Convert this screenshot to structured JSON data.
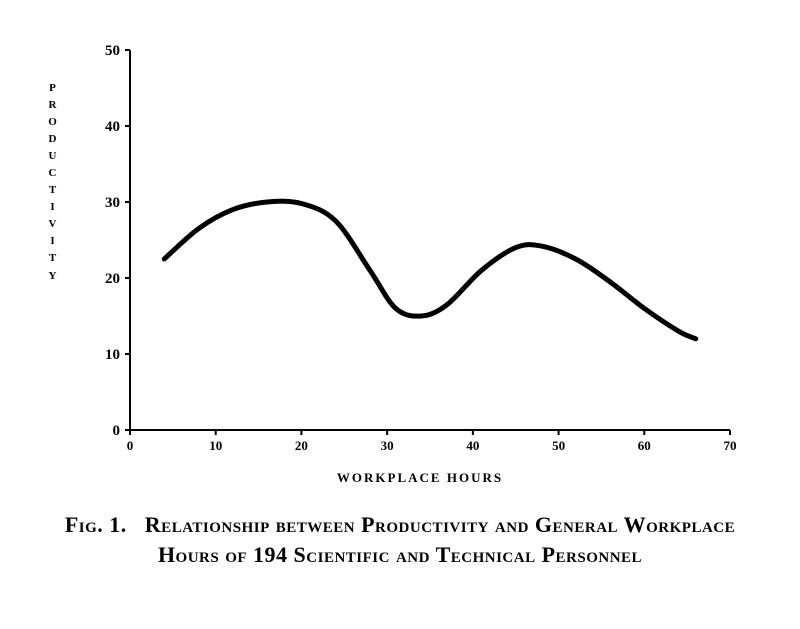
{
  "chart": {
    "type": "line",
    "background_color": "#ffffff",
    "plot_border_color": "#000000",
    "plot_border_width": 2,
    "curve_color": "#000000",
    "curve_width": 5,
    "x": {
      "label": "WORKPLACE  HOURS",
      "label_fontsize": 13,
      "min": 0,
      "max": 70,
      "tick_step": 10,
      "ticks": [
        0,
        10,
        20,
        30,
        40,
        50,
        60,
        70
      ],
      "tick_labels": [
        "0",
        "10",
        "20",
        "30",
        "40",
        "50",
        "60",
        "70"
      ],
      "tick_fontsize": 13
    },
    "y": {
      "label": "PRODUCTIVITY",
      "label_fontsize": 11,
      "min": 0,
      "max": 50,
      "tick_step": 10,
      "ticks": [
        0,
        10,
        20,
        30,
        40,
        50
      ],
      "tick_labels": [
        "0",
        "10",
        "20",
        "30",
        "40",
        "50"
      ],
      "tick_fontsize": 15
    },
    "series": [
      {
        "name": "productivity_vs_hours",
        "points": [
          [
            4,
            22.5
          ],
          [
            8,
            26.5
          ],
          [
            12,
            29.0
          ],
          [
            16,
            30.0
          ],
          [
            20,
            29.8
          ],
          [
            24,
            27.5
          ],
          [
            28,
            21.0
          ],
          [
            31,
            16.0
          ],
          [
            34,
            15.0
          ],
          [
            37,
            16.5
          ],
          [
            41,
            21.0
          ],
          [
            45,
            24.0
          ],
          [
            48,
            24.2
          ],
          [
            52,
            22.5
          ],
          [
            56,
            19.5
          ],
          [
            60,
            16.0
          ],
          [
            64,
            13.0
          ],
          [
            66,
            12.0
          ]
        ]
      }
    ]
  },
  "caption": {
    "prefix": "Fig. 1.",
    "text": "Relationship between Productivity and General Workplace Hours of 194 Scientific and Technical Personnel",
    "fontsize": 22
  }
}
